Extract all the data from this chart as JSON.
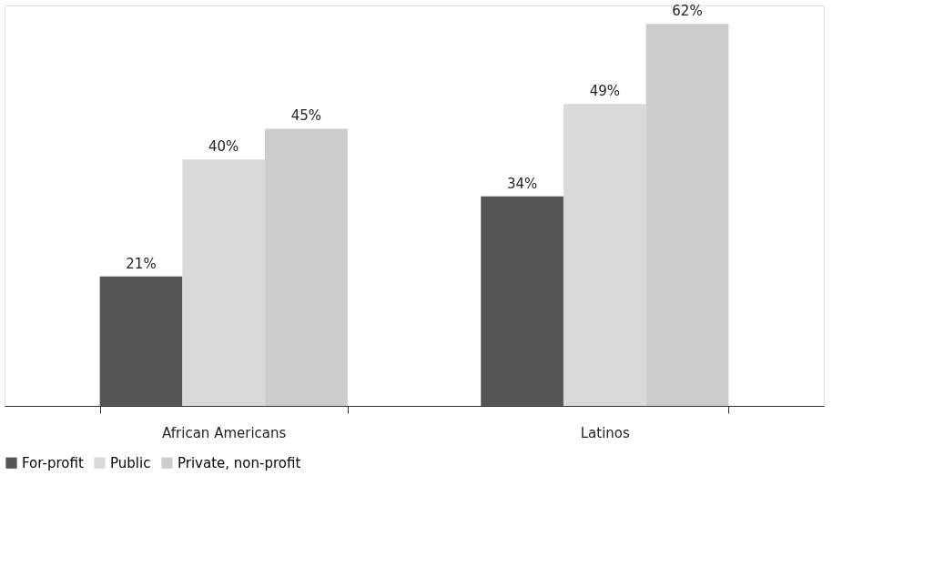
{
  "chart_data": {
    "type": "bar",
    "categories": [
      "African Americans",
      "Latinos"
    ],
    "series": [
      {
        "name": "For-profit",
        "color": "#555555",
        "values": [
          21,
          34
        ],
        "value_labels": [
          "21%",
          "34%"
        ]
      },
      {
        "name": "Public",
        "color": "#d9d9d9",
        "values": [
          40,
          49
        ],
        "value_labels": [
          "40%",
          "49%"
        ]
      },
      {
        "name": "Private, non-profit",
        "color": "#cccccc",
        "values": [
          45,
          62
        ],
        "value_labels": [
          "45%",
          "62%"
        ]
      }
    ],
    "legend": "bottom",
    "grid": false
  }
}
